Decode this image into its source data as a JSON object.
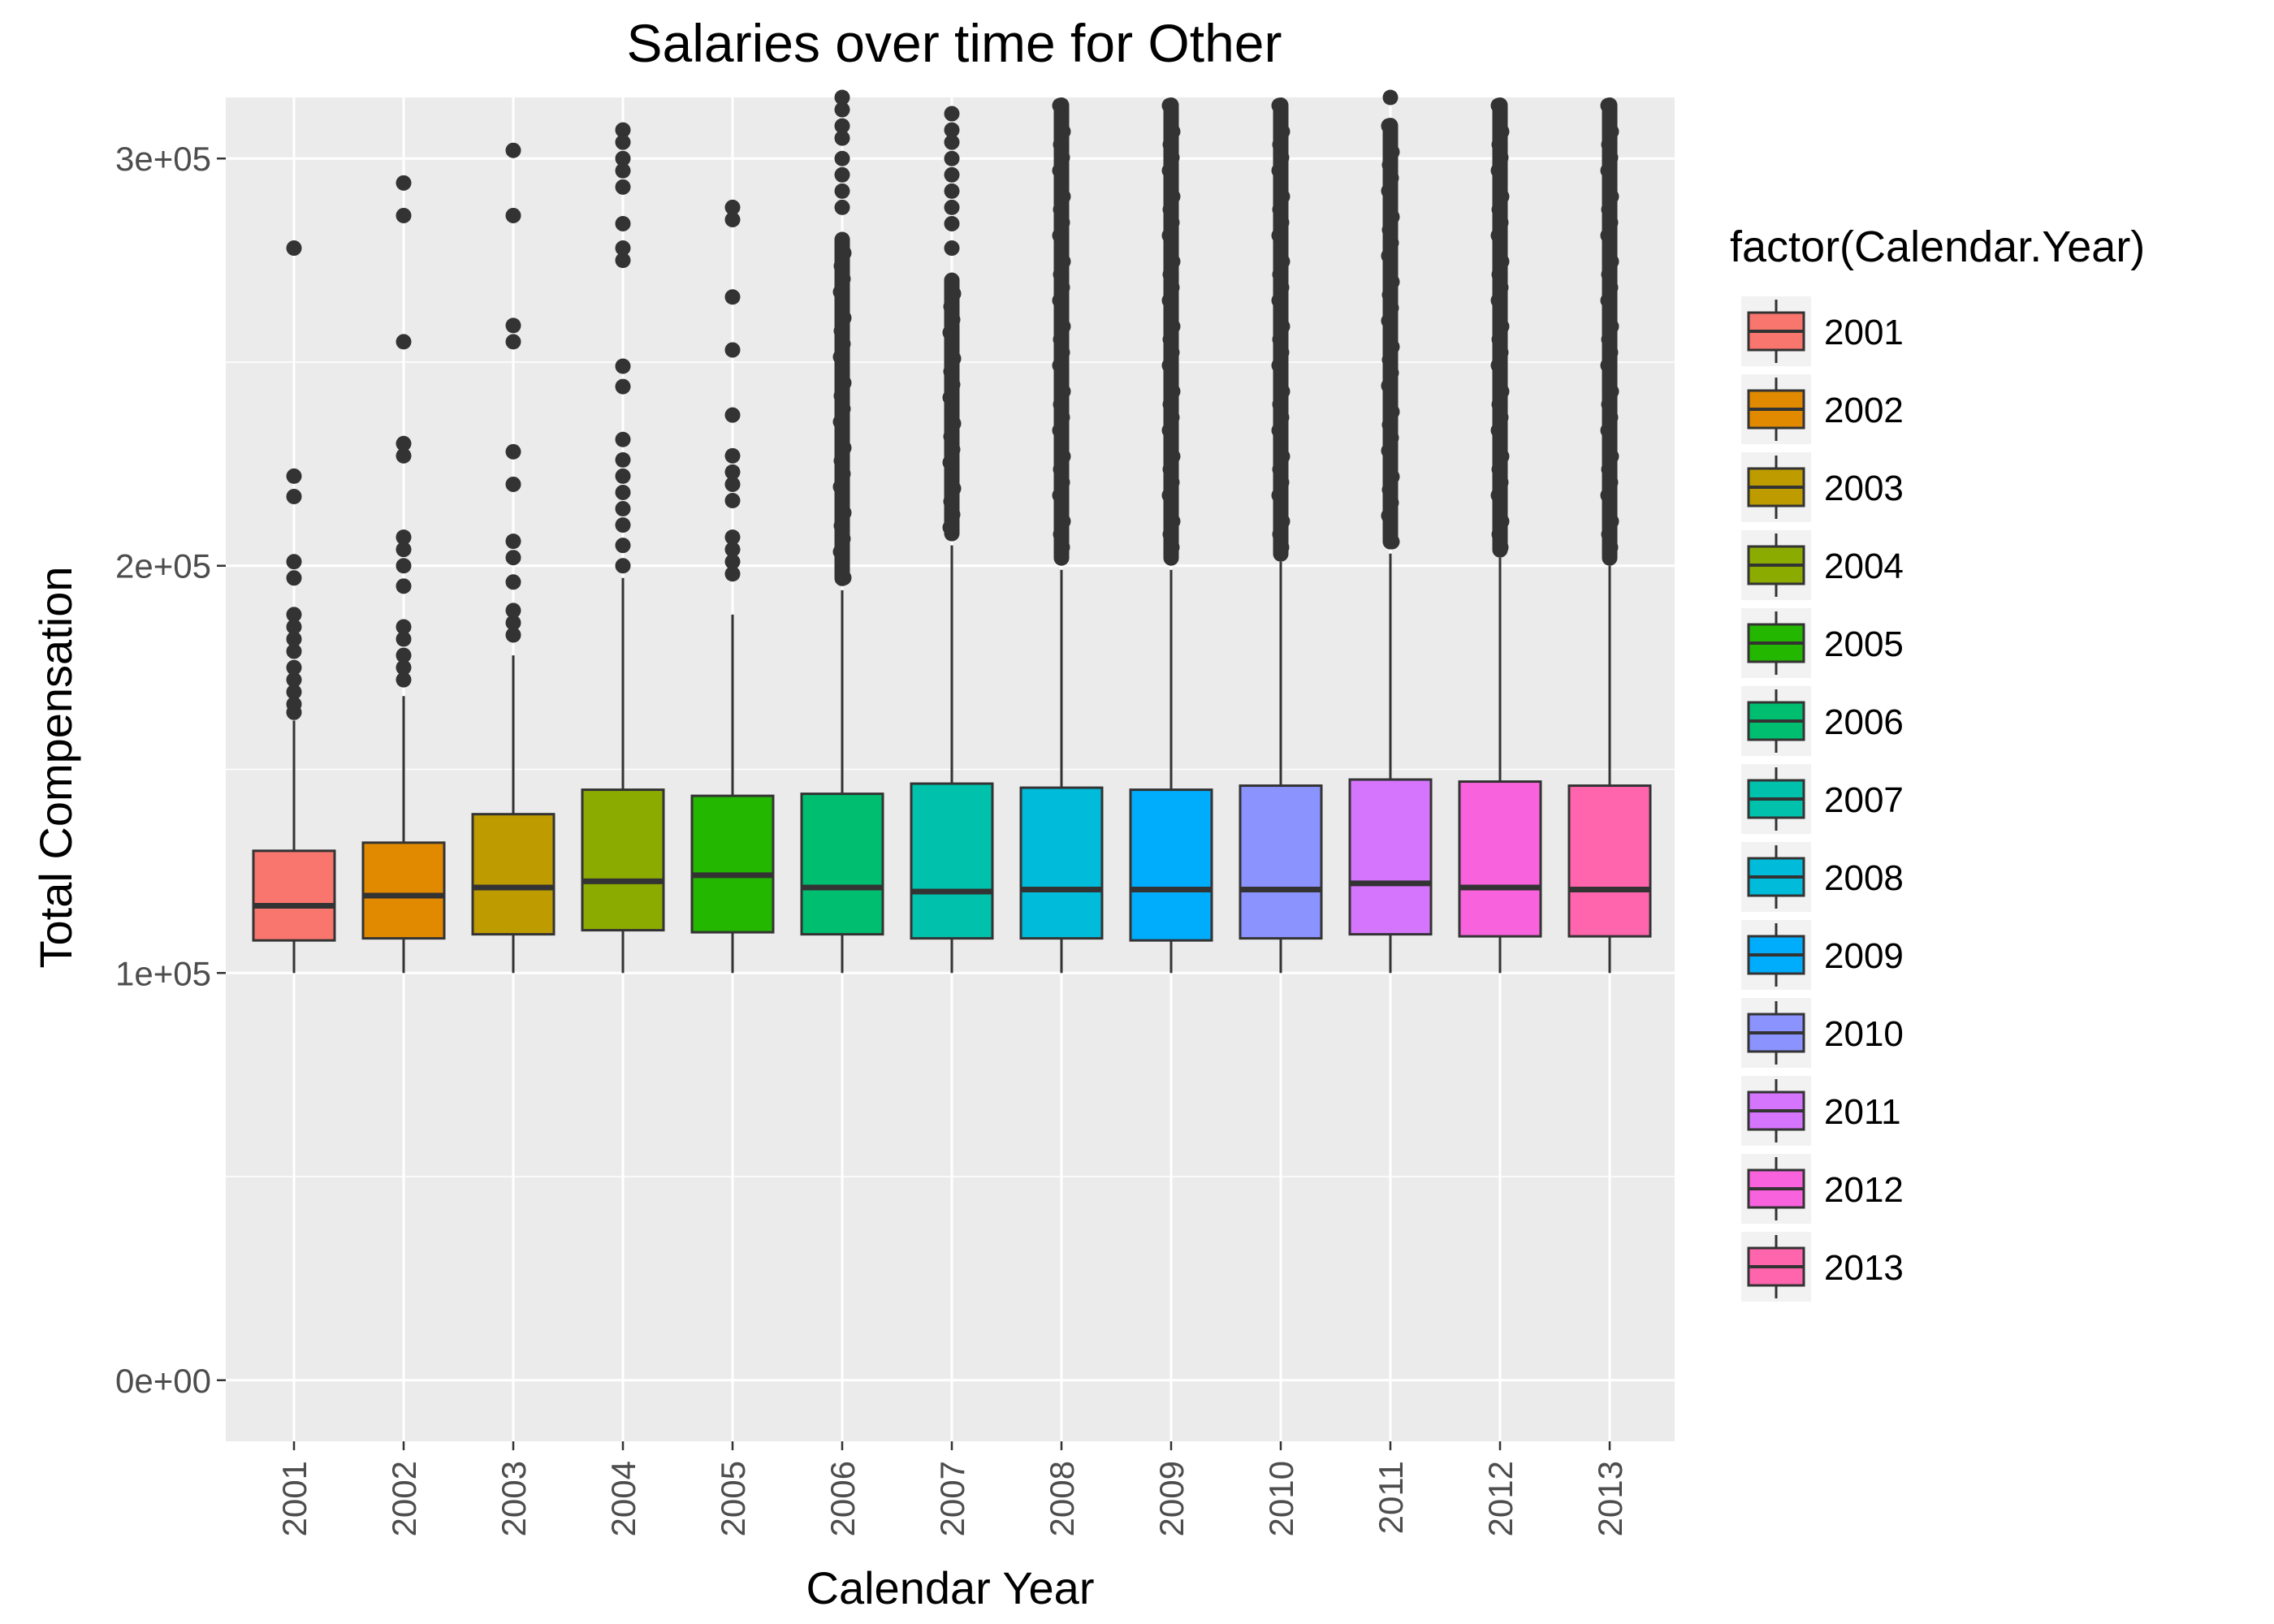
{
  "chart_data": {
    "type": "boxplot",
    "title": "Salaries over time for Other",
    "xlabel": "Calendar Year",
    "ylabel": "Total Compensation",
    "ylim": [
      -15000,
      315000
    ],
    "y_ticks": [
      0,
      100000,
      200000,
      300000
    ],
    "y_tick_labels": [
      "0e+00",
      "1e+05",
      "2e+05",
      "3e+05"
    ],
    "grid": true,
    "legend_title": "factor(Calendar.Year)",
    "legend_position": "right",
    "categories": [
      "2001",
      "2002",
      "2003",
      "2004",
      "2005",
      "2006",
      "2007",
      "2008",
      "2009",
      "2010",
      "2011",
      "2012",
      "2013"
    ],
    "colors": [
      "#F8766D",
      "#E18A00",
      "#BE9C00",
      "#8CAB00",
      "#24B700",
      "#00BE70",
      "#00C1AB",
      "#00BBDA",
      "#00ACFC",
      "#8B93FF",
      "#D575FE",
      "#F962DD",
      "#FF65AC"
    ],
    "boxes": [
      {
        "category": "2001",
        "whisker_low": 100000,
        "q1": 108000,
        "median": 116500,
        "q3": 130000,
        "whisker_high": 162000,
        "outliers": [
          278000,
          222000,
          217000,
          201000,
          197000,
          188000,
          185000,
          182000,
          179000,
          175000,
          172000,
          169000,
          166000,
          164000
        ]
      },
      {
        "category": "2002",
        "whisker_low": 100000,
        "q1": 108500,
        "median": 119000,
        "q3": 132000,
        "whisker_high": 168000,
        "outliers": [
          294000,
          286000,
          255000,
          230000,
          227000,
          207000,
          204000,
          200000,
          195000,
          185000,
          182000,
          178000,
          175000,
          172000
        ]
      },
      {
        "category": "2003",
        "whisker_low": 100000,
        "q1": 109500,
        "median": 121000,
        "q3": 139000,
        "whisker_high": 178000,
        "outliers": [
          302000,
          286000,
          259000,
          255000,
          228000,
          220000,
          206000,
          202000,
          196000,
          189000,
          186000,
          183000
        ]
      },
      {
        "category": "2004",
        "whisker_low": 100000,
        "q1": 110500,
        "median": 122500,
        "q3": 145000,
        "whisker_high": 197000,
        "outliers": [
          307000,
          304000,
          300000,
          297000,
          293000,
          284000,
          278000,
          275000,
          249000,
          244000,
          231000,
          226000,
          222000,
          218000,
          214000,
          210000,
          205000,
          200000
        ]
      },
      {
        "category": "2005",
        "whisker_low": 100000,
        "q1": 110000,
        "median": 124000,
        "q3": 143500,
        "whisker_high": 188000,
        "outliers": [
          288000,
          285000,
          266000,
          253000,
          237000,
          227000,
          223000,
          220000,
          216000,
          207000,
          204000,
          201000,
          198000
        ]
      },
      {
        "category": "2006",
        "whisker_low": 100000,
        "q1": 109500,
        "median": 121000,
        "q3": 144000,
        "whisker_high": 194000
      },
      {
        "category": "2007",
        "whisker_low": 100000,
        "q1": 108500,
        "median": 120000,
        "q3": 146500,
        "whisker_high": 205000
      },
      {
        "category": "2008",
        "whisker_low": 100000,
        "q1": 108500,
        "median": 120500,
        "q3": 145500,
        "whisker_high": 199000
      },
      {
        "category": "2009",
        "whisker_low": 100000,
        "q1": 108000,
        "median": 120500,
        "q3": 145000,
        "whisker_high": 199000
      },
      {
        "category": "2010",
        "whisker_low": 100000,
        "q1": 108500,
        "median": 120500,
        "q3": 146000,
        "whisker_high": 201000
      },
      {
        "category": "2011",
        "whisker_low": 100000,
        "q1": 109500,
        "median": 122000,
        "q3": 147500,
        "whisker_high": 203000
      },
      {
        "category": "2012",
        "whisker_low": 100000,
        "q1": 109000,
        "median": 121000,
        "q3": 147000,
        "whisker_high": 202000
      },
      {
        "category": "2013",
        "whisker_low": 100000,
        "q1": 109000,
        "median": 120500,
        "q3": 146000,
        "whisker_high": 200000
      }
    ],
    "dense_outlier_ranges": [
      {
        "category": "2006",
        "dense_low": 195000,
        "dense_high": 282000,
        "scattered": [
          315000,
          312000,
          308000,
          305000,
          300000,
          296000,
          292000,
          288000,
          264000
        ]
      },
      {
        "category": "2007",
        "dense_low": 206000,
        "dense_high": 272000,
        "scattered": [
          311000,
          307000,
          304000,
          300000,
          296000,
          292000,
          288000,
          284000,
          278000
        ]
      },
      {
        "category": "2008",
        "dense_low": 200000,
        "dense_high": 315000,
        "scattered": []
      },
      {
        "category": "2009",
        "dense_low": 200000,
        "dense_high": 315000,
        "scattered": []
      },
      {
        "category": "2010",
        "dense_low": 201000,
        "dense_high": 315000,
        "scattered": []
      },
      {
        "category": "2011",
        "dense_low": 204000,
        "dense_high": 310000,
        "scattered": [
          315000
        ]
      },
      {
        "category": "2012",
        "dense_low": 202000,
        "dense_high": 315000,
        "scattered": []
      },
      {
        "category": "2013",
        "dense_low": 200000,
        "dense_high": 315000,
        "scattered": []
      }
    ]
  }
}
